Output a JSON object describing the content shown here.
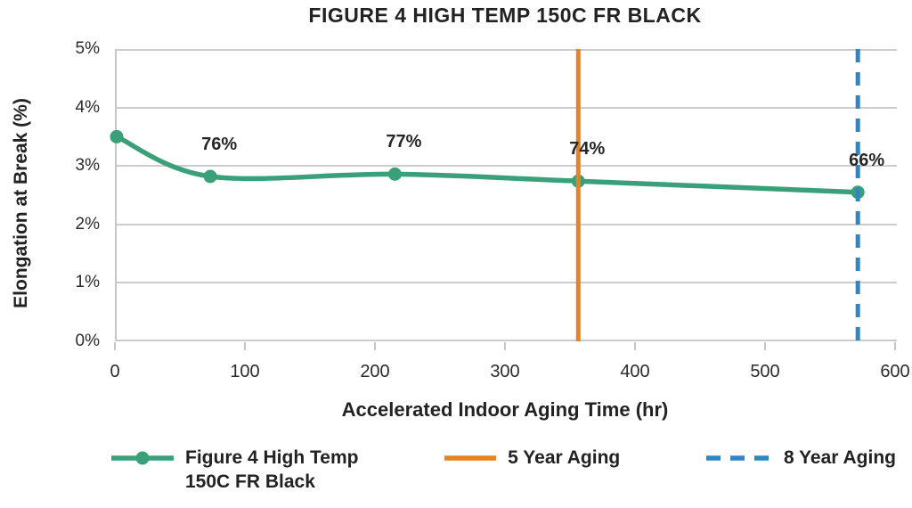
{
  "chart_data": {
    "type": "line",
    "title": "FIGURE 4 HIGH TEMP 150C FR BLACK",
    "xlabel": "Accelerated Indoor Aging Time (hr)",
    "ylabel": "Elongation at Break (%)",
    "xlim": [
      0,
      600
    ],
    "ylim": [
      0,
      5
    ],
    "grid": true,
    "x_tick_labels": [
      "0",
      "100",
      "200",
      "300",
      "400",
      "500",
      "600"
    ],
    "y_tick_labels": [
      "5%",
      "4%",
      "3%",
      "2%",
      "1%",
      "0%"
    ],
    "colors": {
      "series_green": "#3aa07a",
      "vline_orange": "#e8811f",
      "vline_blue": "#2f86c6",
      "grid_gray": "#cccccc",
      "text": "#262626"
    },
    "series": [
      {
        "name": "Figure 4 High Temp 150C FR Black",
        "type": "line",
        "color": "#3aa07a",
        "x": [
          0,
          72,
          214,
          355,
          570
        ],
        "y": [
          3.5,
          2.82,
          2.86,
          2.74,
          2.55
        ],
        "point_labels": [
          "",
          "76%",
          "77%",
          "74%",
          "66%"
        ]
      },
      {
        "name": "5 Year Aging",
        "type": "vline",
        "color": "#e8811f",
        "x": 355,
        "line_style": "solid"
      },
      {
        "name": "8 Year Aging",
        "type": "vline",
        "color": "#2f86c6",
        "x": 570,
        "line_style": "dashed"
      }
    ],
    "legend_position": "bottom",
    "legend": [
      {
        "lines": [
          "Figure 4 High Temp",
          "150C FR Black"
        ]
      },
      {
        "lines": [
          "5 Year Aging"
        ]
      },
      {
        "lines": [
          "8 Year Aging"
        ]
      }
    ]
  }
}
